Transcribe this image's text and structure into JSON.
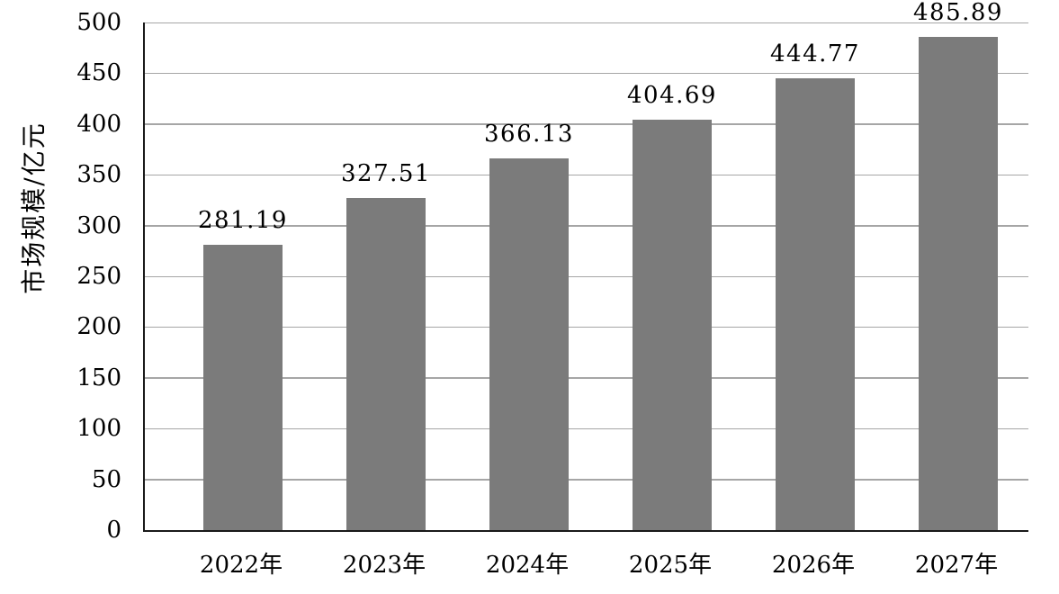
{
  "chart_data": {
    "type": "bar",
    "title": "",
    "categories": [
      "2022年",
      "2023年",
      "2024年",
      "2025年",
      "2026年",
      "2027年"
    ],
    "values": [
      281.19,
      327.51,
      366.13,
      404.69,
      444.77,
      485.89
    ],
    "value_labels": [
      "281.19",
      "327.51",
      "366.13",
      "404.69",
      "444.77",
      "485.89"
    ],
    "xlabel": "",
    "ylabel": "市场规模/亿元",
    "ylim": [
      0,
      500
    ],
    "ytick_step": 50,
    "yticks": [
      0,
      50,
      100,
      150,
      200,
      250,
      300,
      350,
      400,
      450,
      500
    ],
    "grid": true,
    "legend": "none",
    "colors": {
      "bar": "#7b7b7b",
      "gridline": "#a6a6a6",
      "axis": "#1a1a1a",
      "text": "#000000",
      "background": "#ffffff"
    }
  }
}
